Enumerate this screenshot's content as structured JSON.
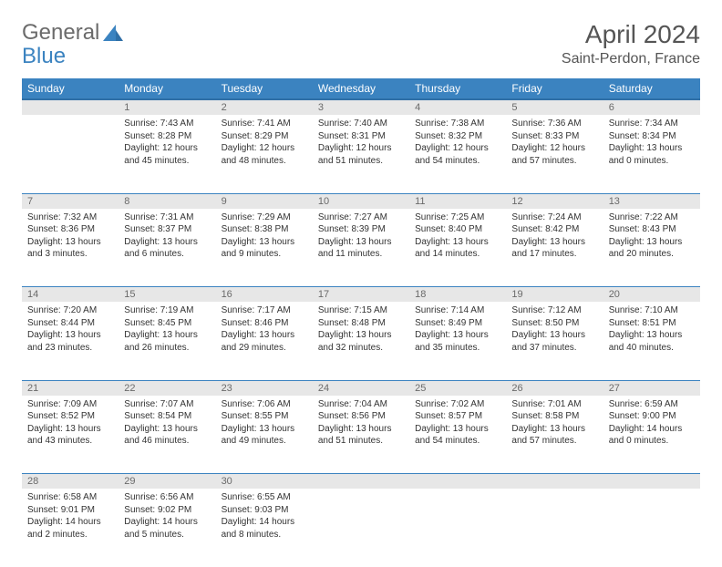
{
  "logo": {
    "part1": "General",
    "part2": "Blue"
  },
  "title": "April 2024",
  "location": "Saint-Perdon, France",
  "colors": {
    "header_bg": "#3b83c0",
    "header_border": "#2f6fa6",
    "daynum_bg": "#e7e7e7",
    "daynum_text": "#6a6a6a",
    "cell_border": "#3b83c0",
    "logo_gray": "#6b6b6b",
    "logo_blue": "#3b83c0",
    "body_text": "#333333",
    "title_text": "#555555"
  },
  "columns": [
    "Sunday",
    "Monday",
    "Tuesday",
    "Wednesday",
    "Thursday",
    "Friday",
    "Saturday"
  ],
  "weeks": [
    [
      {
        "n": "",
        "sr": "",
        "ss": "",
        "dl": ""
      },
      {
        "n": "1",
        "sr": "Sunrise: 7:43 AM",
        "ss": "Sunset: 8:28 PM",
        "dl": "Daylight: 12 hours and 45 minutes."
      },
      {
        "n": "2",
        "sr": "Sunrise: 7:41 AM",
        "ss": "Sunset: 8:29 PM",
        "dl": "Daylight: 12 hours and 48 minutes."
      },
      {
        "n": "3",
        "sr": "Sunrise: 7:40 AM",
        "ss": "Sunset: 8:31 PM",
        "dl": "Daylight: 12 hours and 51 minutes."
      },
      {
        "n": "4",
        "sr": "Sunrise: 7:38 AM",
        "ss": "Sunset: 8:32 PM",
        "dl": "Daylight: 12 hours and 54 minutes."
      },
      {
        "n": "5",
        "sr": "Sunrise: 7:36 AM",
        "ss": "Sunset: 8:33 PM",
        "dl": "Daylight: 12 hours and 57 minutes."
      },
      {
        "n": "6",
        "sr": "Sunrise: 7:34 AM",
        "ss": "Sunset: 8:34 PM",
        "dl": "Daylight: 13 hours and 0 minutes."
      }
    ],
    [
      {
        "n": "7",
        "sr": "Sunrise: 7:32 AM",
        "ss": "Sunset: 8:36 PM",
        "dl": "Daylight: 13 hours and 3 minutes."
      },
      {
        "n": "8",
        "sr": "Sunrise: 7:31 AM",
        "ss": "Sunset: 8:37 PM",
        "dl": "Daylight: 13 hours and 6 minutes."
      },
      {
        "n": "9",
        "sr": "Sunrise: 7:29 AM",
        "ss": "Sunset: 8:38 PM",
        "dl": "Daylight: 13 hours and 9 minutes."
      },
      {
        "n": "10",
        "sr": "Sunrise: 7:27 AM",
        "ss": "Sunset: 8:39 PM",
        "dl": "Daylight: 13 hours and 11 minutes."
      },
      {
        "n": "11",
        "sr": "Sunrise: 7:25 AM",
        "ss": "Sunset: 8:40 PM",
        "dl": "Daylight: 13 hours and 14 minutes."
      },
      {
        "n": "12",
        "sr": "Sunrise: 7:24 AM",
        "ss": "Sunset: 8:42 PM",
        "dl": "Daylight: 13 hours and 17 minutes."
      },
      {
        "n": "13",
        "sr": "Sunrise: 7:22 AM",
        "ss": "Sunset: 8:43 PM",
        "dl": "Daylight: 13 hours and 20 minutes."
      }
    ],
    [
      {
        "n": "14",
        "sr": "Sunrise: 7:20 AM",
        "ss": "Sunset: 8:44 PM",
        "dl": "Daylight: 13 hours and 23 minutes."
      },
      {
        "n": "15",
        "sr": "Sunrise: 7:19 AM",
        "ss": "Sunset: 8:45 PM",
        "dl": "Daylight: 13 hours and 26 minutes."
      },
      {
        "n": "16",
        "sr": "Sunrise: 7:17 AM",
        "ss": "Sunset: 8:46 PM",
        "dl": "Daylight: 13 hours and 29 minutes."
      },
      {
        "n": "17",
        "sr": "Sunrise: 7:15 AM",
        "ss": "Sunset: 8:48 PM",
        "dl": "Daylight: 13 hours and 32 minutes."
      },
      {
        "n": "18",
        "sr": "Sunrise: 7:14 AM",
        "ss": "Sunset: 8:49 PM",
        "dl": "Daylight: 13 hours and 35 minutes."
      },
      {
        "n": "19",
        "sr": "Sunrise: 7:12 AM",
        "ss": "Sunset: 8:50 PM",
        "dl": "Daylight: 13 hours and 37 minutes."
      },
      {
        "n": "20",
        "sr": "Sunrise: 7:10 AM",
        "ss": "Sunset: 8:51 PM",
        "dl": "Daylight: 13 hours and 40 minutes."
      }
    ],
    [
      {
        "n": "21",
        "sr": "Sunrise: 7:09 AM",
        "ss": "Sunset: 8:52 PM",
        "dl": "Daylight: 13 hours and 43 minutes."
      },
      {
        "n": "22",
        "sr": "Sunrise: 7:07 AM",
        "ss": "Sunset: 8:54 PM",
        "dl": "Daylight: 13 hours and 46 minutes."
      },
      {
        "n": "23",
        "sr": "Sunrise: 7:06 AM",
        "ss": "Sunset: 8:55 PM",
        "dl": "Daylight: 13 hours and 49 minutes."
      },
      {
        "n": "24",
        "sr": "Sunrise: 7:04 AM",
        "ss": "Sunset: 8:56 PM",
        "dl": "Daylight: 13 hours and 51 minutes."
      },
      {
        "n": "25",
        "sr": "Sunrise: 7:02 AM",
        "ss": "Sunset: 8:57 PM",
        "dl": "Daylight: 13 hours and 54 minutes."
      },
      {
        "n": "26",
        "sr": "Sunrise: 7:01 AM",
        "ss": "Sunset: 8:58 PM",
        "dl": "Daylight: 13 hours and 57 minutes."
      },
      {
        "n": "27",
        "sr": "Sunrise: 6:59 AM",
        "ss": "Sunset: 9:00 PM",
        "dl": "Daylight: 14 hours and 0 minutes."
      }
    ],
    [
      {
        "n": "28",
        "sr": "Sunrise: 6:58 AM",
        "ss": "Sunset: 9:01 PM",
        "dl": "Daylight: 14 hours and 2 minutes."
      },
      {
        "n": "29",
        "sr": "Sunrise: 6:56 AM",
        "ss": "Sunset: 9:02 PM",
        "dl": "Daylight: 14 hours and 5 minutes."
      },
      {
        "n": "30",
        "sr": "Sunrise: 6:55 AM",
        "ss": "Sunset: 9:03 PM",
        "dl": "Daylight: 14 hours and 8 minutes."
      },
      {
        "n": "",
        "sr": "",
        "ss": "",
        "dl": ""
      },
      {
        "n": "",
        "sr": "",
        "ss": "",
        "dl": ""
      },
      {
        "n": "",
        "sr": "",
        "ss": "",
        "dl": ""
      },
      {
        "n": "",
        "sr": "",
        "ss": "",
        "dl": ""
      }
    ]
  ]
}
